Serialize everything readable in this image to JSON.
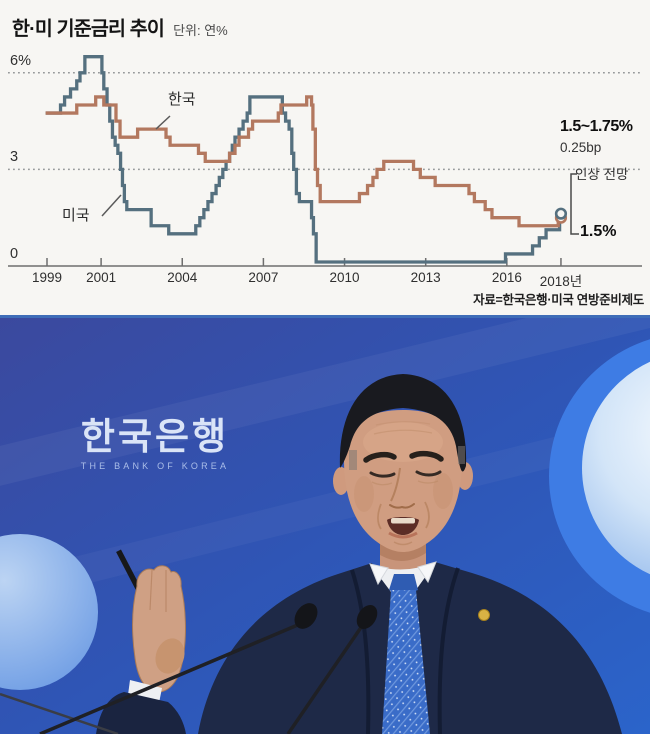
{
  "page": {
    "title": "한·미 기준금리 추이",
    "unit_label": "단위: 연%",
    "source": "자료=한국은행·미국 연방준비제도"
  },
  "chart_data": {
    "type": "line",
    "subtype": "step",
    "title": "한·미 기준금리 추이",
    "unit": "연%",
    "x_range": [
      1998.95,
      2018.12
    ],
    "y_range": [
      0,
      6.8
    ],
    "grid": "horizontal-dotted",
    "x_ticks": [
      {
        "label": "1999",
        "year": 1999
      },
      {
        "label": "2001",
        "year": 2001
      },
      {
        "label": "2004",
        "year": 2004
      },
      {
        "label": "2007",
        "year": 2007
      },
      {
        "label": "2010",
        "year": 2010
      },
      {
        "label": "2013",
        "year": 2013
      },
      {
        "label": "2016",
        "year": 2016
      },
      {
        "label": "2018년",
        "year": 2018
      }
    ],
    "y_ticks": [
      {
        "label": "6%",
        "value": 6
      },
      {
        "label": "3",
        "value": 3
      },
      {
        "label": "0",
        "value": 0
      }
    ],
    "series": [
      {
        "name": "한국",
        "color": "#b3785f",
        "points": [
          [
            1999.0,
            4.75
          ],
          [
            2000.1,
            5.0
          ],
          [
            2000.8,
            5.25
          ],
          [
            2001.1,
            5.0
          ],
          [
            2001.55,
            4.5
          ],
          [
            2001.7,
            4.0
          ],
          [
            2002.35,
            4.25
          ],
          [
            2003.4,
            4.0
          ],
          [
            2003.55,
            3.75
          ],
          [
            2004.6,
            3.5
          ],
          [
            2004.85,
            3.25
          ],
          [
            2005.75,
            3.5
          ],
          [
            2005.95,
            3.75
          ],
          [
            2006.1,
            4.0
          ],
          [
            2006.45,
            4.25
          ],
          [
            2006.6,
            4.5
          ],
          [
            2007.55,
            4.75
          ],
          [
            2007.65,
            5.0
          ],
          [
            2008.6,
            5.25
          ],
          [
            2008.78,
            5.0
          ],
          [
            2008.83,
            4.25
          ],
          [
            2008.92,
            3.0
          ],
          [
            2009.0,
            2.5
          ],
          [
            2009.1,
            2.0
          ],
          [
            2010.55,
            2.25
          ],
          [
            2010.85,
            2.5
          ],
          [
            2011.05,
            2.75
          ],
          [
            2011.2,
            3.0
          ],
          [
            2011.45,
            3.25
          ],
          [
            2012.55,
            3.0
          ],
          [
            2012.8,
            2.75
          ],
          [
            2013.35,
            2.5
          ],
          [
            2014.6,
            2.25
          ],
          [
            2014.8,
            2.0
          ],
          [
            2015.2,
            1.75
          ],
          [
            2015.45,
            1.5
          ],
          [
            2016.45,
            1.25
          ],
          [
            2017.9,
            1.5
          ]
        ],
        "end_marker": {
          "year": 2018.0,
          "value": 1.5
        }
      },
      {
        "name": "미국",
        "color": "#55707f",
        "points": [
          [
            1999.0,
            4.75
          ],
          [
            1999.5,
            5.0
          ],
          [
            1999.65,
            5.25
          ],
          [
            1999.87,
            5.5
          ],
          [
            2000.1,
            5.75
          ],
          [
            2000.22,
            6.0
          ],
          [
            2000.4,
            6.5
          ],
          [
            2001.03,
            6.0
          ],
          [
            2001.1,
            5.5
          ],
          [
            2001.22,
            5.0
          ],
          [
            2001.32,
            4.5
          ],
          [
            2001.42,
            4.0
          ],
          [
            2001.52,
            3.75
          ],
          [
            2001.62,
            3.5
          ],
          [
            2001.72,
            3.0
          ],
          [
            2001.79,
            2.5
          ],
          [
            2001.86,
            2.0
          ],
          [
            2001.95,
            1.75
          ],
          [
            2002.85,
            1.25
          ],
          [
            2003.5,
            1.0
          ],
          [
            2004.5,
            1.25
          ],
          [
            2004.65,
            1.5
          ],
          [
            2004.8,
            1.75
          ],
          [
            2004.95,
            2.0
          ],
          [
            2005.1,
            2.25
          ],
          [
            2005.25,
            2.5
          ],
          [
            2005.37,
            2.75
          ],
          [
            2005.5,
            3.0
          ],
          [
            2005.62,
            3.25
          ],
          [
            2005.75,
            3.5
          ],
          [
            2005.85,
            3.75
          ],
          [
            2005.95,
            4.0
          ],
          [
            2006.1,
            4.25
          ],
          [
            2006.25,
            4.5
          ],
          [
            2006.4,
            4.75
          ],
          [
            2006.5,
            5.25
          ],
          [
            2007.7,
            4.75
          ],
          [
            2007.82,
            4.5
          ],
          [
            2007.95,
            4.25
          ],
          [
            2008.05,
            3.5
          ],
          [
            2008.12,
            3.0
          ],
          [
            2008.22,
            2.25
          ],
          [
            2008.33,
            2.0
          ],
          [
            2008.78,
            1.5
          ],
          [
            2008.85,
            1.0
          ],
          [
            2008.95,
            0.125
          ],
          [
            2015.95,
            0.375
          ],
          [
            2016.95,
            0.625
          ],
          [
            2017.2,
            0.875
          ],
          [
            2017.45,
            1.125
          ],
          [
            2017.95,
            1.375
          ]
        ],
        "end_marker": {
          "year": 2018.0,
          "value": 1.625,
          "note": "forecast"
        }
      }
    ],
    "annotations": {
      "us_forecast_range": "1.5~1.75%",
      "us_forecast_step": "0.25bp",
      "us_forecast_note": "인상 전망",
      "korea_current": "1.5%"
    }
  },
  "photo": {
    "backdrop_korean": "한국은행",
    "backdrop_english": "THE BANK OF KOREA"
  },
  "colors": {
    "korea_line": "#b3785f",
    "us_line": "#55707f",
    "separator_line": "#3f6db8",
    "backdrop_blue_top": "#3b499e",
    "backdrop_blue_bottom": "#2b64ca"
  }
}
